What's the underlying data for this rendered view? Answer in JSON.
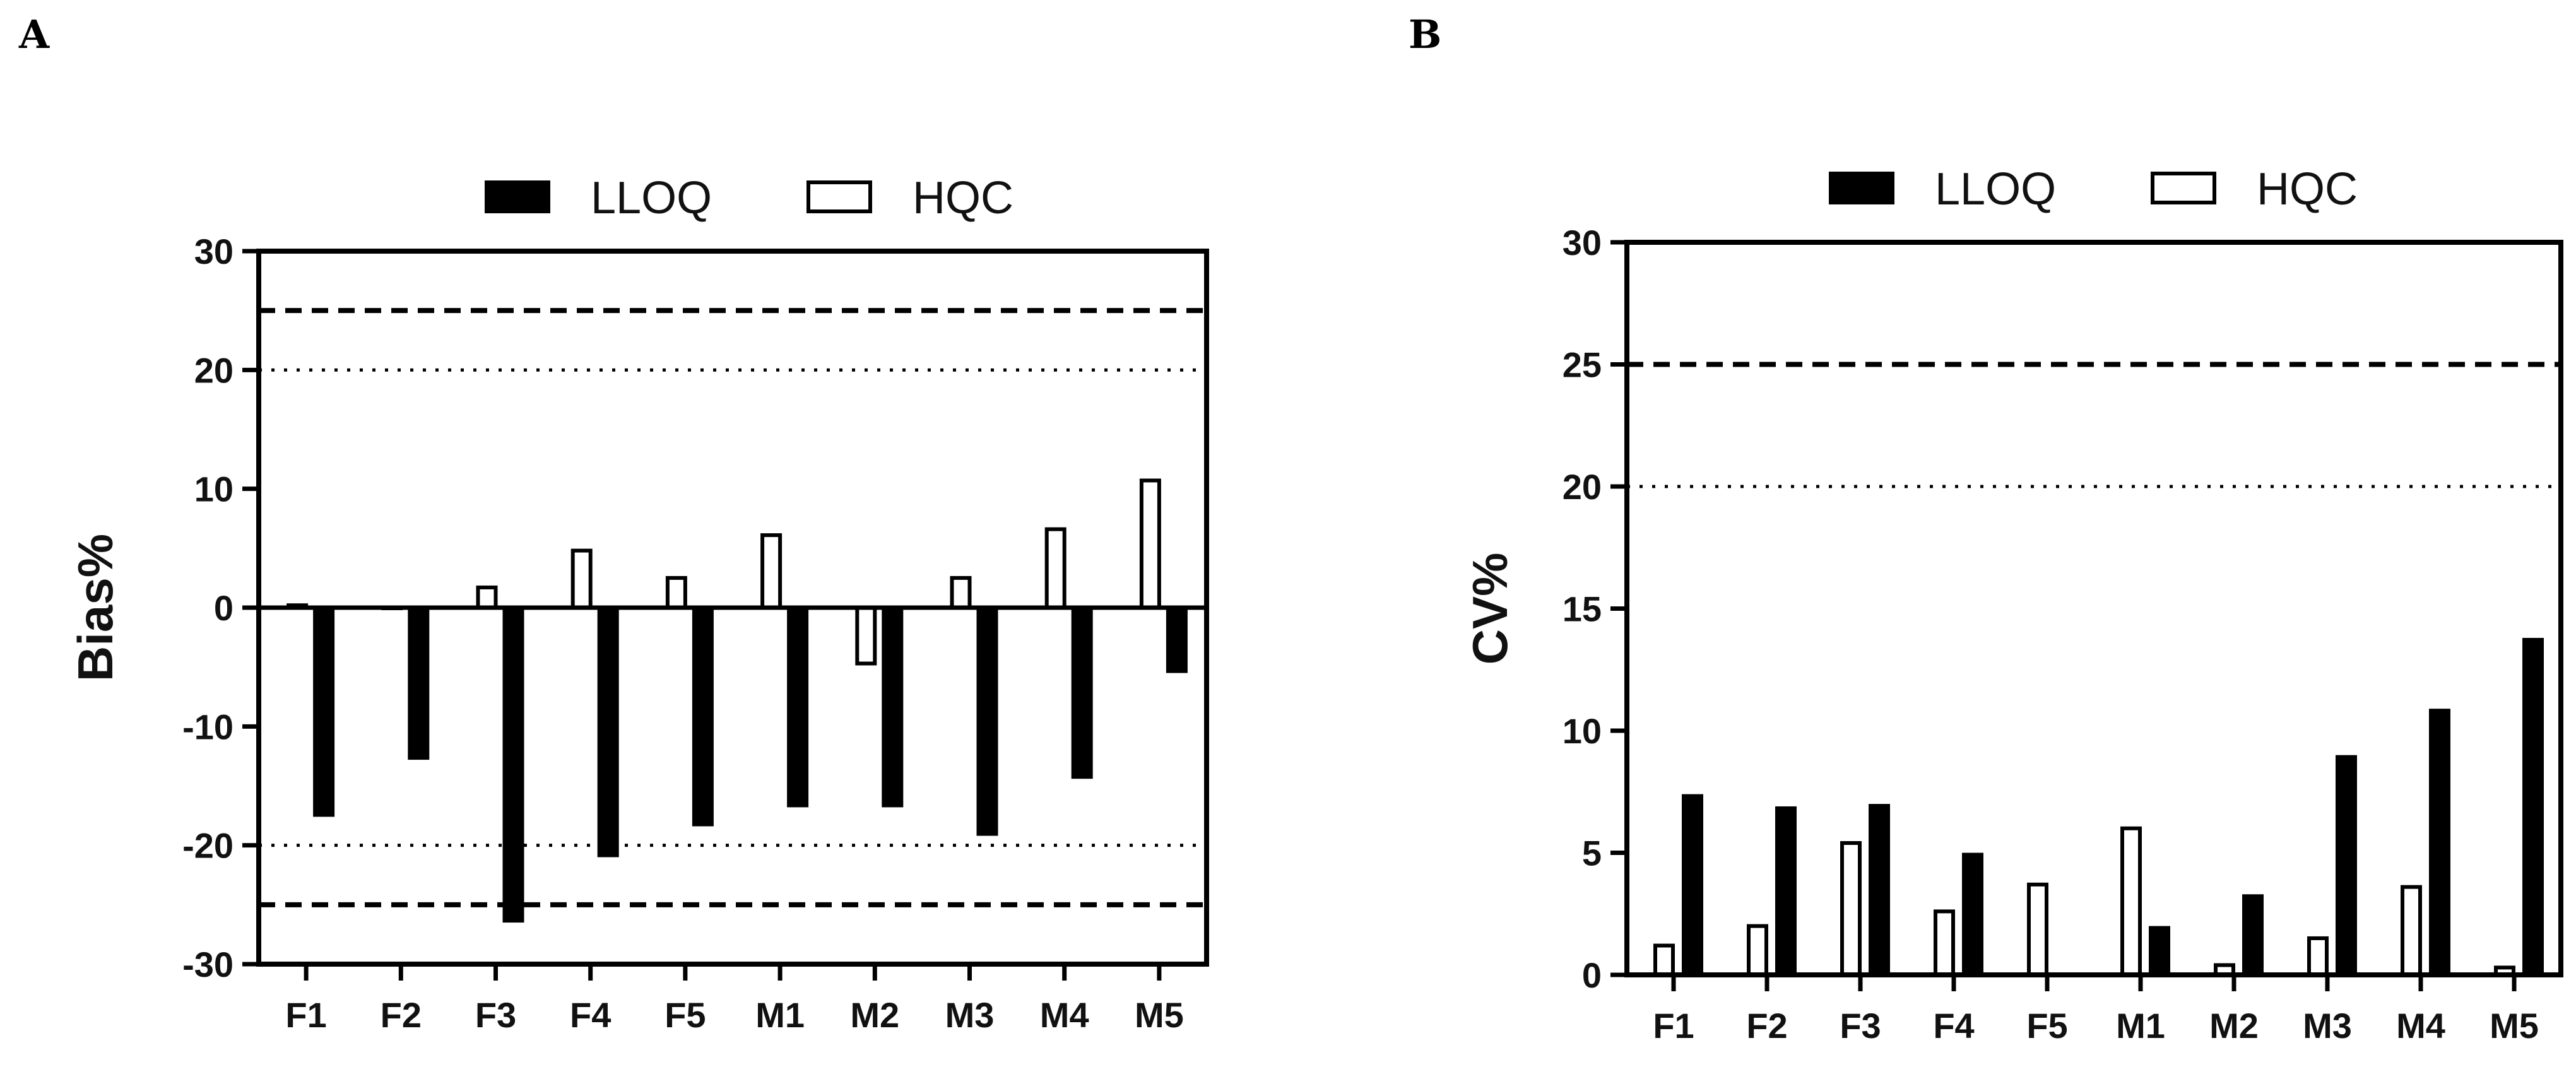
{
  "panels": {
    "a_letter": "A",
    "b_letter": "B"
  },
  "chart_data": [
    {
      "type": "bar",
      "panel": "A",
      "title": "",
      "xlabel": "",
      "ylabel": "Bias%",
      "ylim": [
        -30,
        30
      ],
      "yticks": [
        -30,
        -20,
        -10,
        0,
        10,
        20,
        30
      ],
      "categories": [
        "F1",
        "F2",
        "F3",
        "F4",
        "F5",
        "M1",
        "M2",
        "M3",
        "M4",
        "M5"
      ],
      "legend_position": "top",
      "series": [
        {
          "name": "HQC",
          "style": "hollow",
          "values": [
            0.2,
            0.0,
            1.7,
            4.8,
            2.5,
            6.1,
            -4.7,
            2.5,
            6.6,
            10.7
          ]
        },
        {
          "name": "LLOQ",
          "style": "filled",
          "values": [
            -17.6,
            -12.8,
            -26.5,
            -21.0,
            -18.4,
            -16.8,
            -16.8,
            -19.2,
            -14.4,
            -5.5
          ]
        }
      ],
      "reference_lines": [
        {
          "y": 25,
          "style": "dashed"
        },
        {
          "y": -25,
          "style": "dashed"
        },
        {
          "y": 20,
          "style": "dotted"
        },
        {
          "y": -20,
          "style": "dotted"
        }
      ]
    },
    {
      "type": "bar",
      "panel": "B",
      "title": "",
      "xlabel": "",
      "ylabel": "CV%",
      "ylim": [
        0,
        30
      ],
      "yticks": [
        0,
        5,
        10,
        15,
        20,
        25,
        30
      ],
      "categories": [
        "F1",
        "F2",
        "F3",
        "F4",
        "F5",
        "M1",
        "M2",
        "M3",
        "M4",
        "M5"
      ],
      "legend_position": "top",
      "series": [
        {
          "name": "HQC",
          "style": "hollow",
          "values": [
            1.2,
            2.0,
            5.4,
            2.6,
            3.7,
            6.0,
            0.4,
            1.5,
            3.6,
            0.3
          ]
        },
        {
          "name": "LLOQ",
          "style": "filled",
          "values": [
            7.4,
            6.9,
            7.0,
            5.0,
            0.0,
            2.0,
            3.3,
            9.0,
            10.9,
            13.8
          ]
        }
      ],
      "reference_lines": [
        {
          "y": 25,
          "style": "dashed"
        },
        {
          "y": 20,
          "style": "dotted"
        }
      ]
    }
  ]
}
